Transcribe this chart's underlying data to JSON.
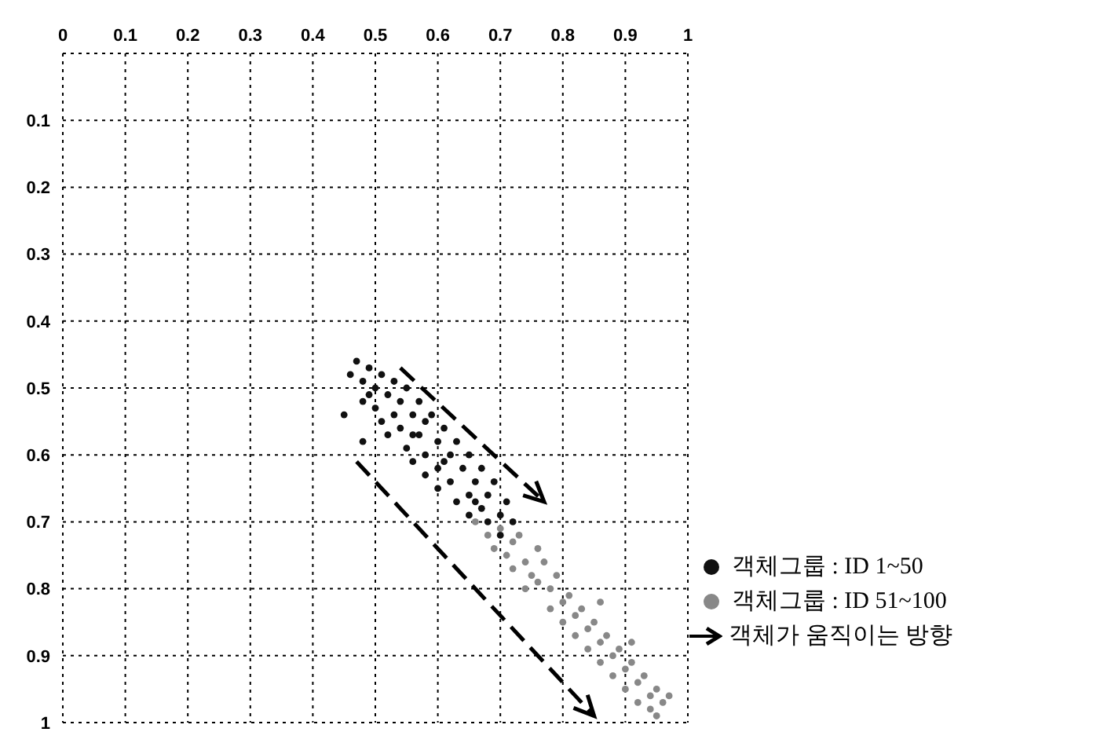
{
  "chart_data": {
    "type": "scatter",
    "xlim": [
      0,
      1
    ],
    "xticks": [
      0,
      {
        "value": 0.1,
        "label": "0.1"
      },
      {
        "value": 0.2,
        "label": "0.2"
      },
      {
        "value": 0.3,
        "label": "0.3"
      },
      {
        "value": 0.4,
        "label": "0.4"
      },
      {
        "value": 0.5,
        "label": "0.5"
      },
      {
        "value": 0.6,
        "label": "0.6"
      },
      {
        "value": 0.7,
        "label": "0.7"
      },
      {
        "value": 0.8,
        "label": "0.8"
      },
      {
        "value": 0.9,
        "label": "0.9"
      },
      1
    ],
    "ylim": [
      1,
      0
    ],
    "yticks": [
      {
        "value": 0,
        "label": null
      },
      0.1,
      0.2,
      0.3,
      0.4,
      0.5,
      0.6,
      0.7,
      0.8,
      0.9,
      1
    ],
    "grid": true,
    "legend": "right",
    "marker": "circle",
    "annotations": [
      "객체가 움직이는 방향"
    ],
    "series": [
      {
        "name": "객체그룹 : ID 1~50",
        "color": "#111111",
        "x": [
          0.46,
          0.47,
          0.48,
          0.49,
          0.48,
          0.5,
          0.51,
          0.5,
          0.52,
          0.53,
          0.51,
          0.53,
          0.54,
          0.55,
          0.52,
          0.54,
          0.56,
          0.57,
          0.55,
          0.57,
          0.58,
          0.59,
          0.56,
          0.58,
          0.6,
          0.61,
          0.58,
          0.6,
          0.62,
          0.63,
          0.6,
          0.62,
          0.64,
          0.65,
          0.63,
          0.65,
          0.66,
          0.67,
          0.65,
          0.67,
          0.68,
          0.69,
          0.68,
          0.7,
          0.71,
          0.72,
          0.7,
          0.49,
          0.56,
          0.61,
          0.66,
          0.45,
          0.48
        ],
        "values": [
          0.48,
          0.46,
          0.49,
          0.47,
          0.52,
          0.5,
          0.48,
          0.53,
          0.51,
          0.49,
          0.55,
          0.54,
          0.52,
          0.5,
          0.57,
          0.56,
          0.54,
          0.52,
          0.59,
          0.57,
          0.55,
          0.54,
          0.61,
          0.6,
          0.58,
          0.56,
          0.63,
          0.62,
          0.6,
          0.58,
          0.65,
          0.64,
          0.62,
          0.6,
          0.67,
          0.66,
          0.64,
          0.62,
          0.69,
          0.68,
          0.66,
          0.64,
          0.7,
          0.69,
          0.67,
          0.7,
          0.72,
          0.51,
          0.57,
          0.61,
          0.67,
          0.54,
          0.58
        ]
      },
      {
        "name": "객체그룹 : ID 51~100",
        "color": "#888888",
        "x": [
          0.66,
          0.68,
          0.7,
          0.72,
          0.69,
          0.71,
          0.73,
          0.74,
          0.72,
          0.75,
          0.77,
          0.76,
          0.78,
          0.74,
          0.79,
          0.8,
          0.78,
          0.81,
          0.82,
          0.8,
          0.83,
          0.84,
          0.82,
          0.85,
          0.86,
          0.84,
          0.87,
          0.88,
          0.86,
          0.89,
          0.9,
          0.88,
          0.91,
          0.92,
          0.9,
          0.93,
          0.94,
          0.92,
          0.95,
          0.96,
          0.94,
          0.97,
          0.95,
          0.76,
          0.86,
          0.91
        ],
        "values": [
          0.7,
          0.72,
          0.71,
          0.73,
          0.74,
          0.75,
          0.72,
          0.76,
          0.77,
          0.78,
          0.76,
          0.79,
          0.8,
          0.8,
          0.78,
          0.82,
          0.83,
          0.81,
          0.84,
          0.85,
          0.83,
          0.86,
          0.87,
          0.85,
          0.88,
          0.89,
          0.87,
          0.9,
          0.91,
          0.89,
          0.92,
          0.93,
          0.91,
          0.94,
          0.95,
          0.93,
          0.96,
          0.97,
          0.95,
          0.97,
          0.98,
          0.96,
          0.99,
          0.74,
          0.82,
          0.88
        ]
      }
    ]
  }
}
